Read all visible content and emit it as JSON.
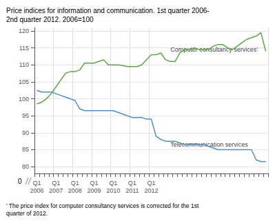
{
  "chart_data": {
    "type": "line",
    "title": "Price indices for information and communication. 1st quarter 2006-\n2nd quarter 2012. 2006=100",
    "footnote": "' The price index for computer consultancy services is corrected for the 1st quarter of 2012.",
    "categories": [
      "Q1\n2006",
      null,
      null,
      null,
      "Q1\n2007",
      null,
      null,
      null,
      "Q1\n2008",
      null,
      null,
      null,
      "Q1\n2009",
      null,
      null,
      null,
      "Q1\n2010",
      null,
      null,
      null,
      "Q1\n2011",
      null,
      null,
      null,
      "Q1\n2012",
      null,
      null,
      null,
      null,
      null,
      null,
      null,
      null,
      null,
      null,
      null,
      null,
      null,
      null,
      null,
      null,
      null,
      null,
      null,
      null,
      null,
      null,
      null,
      null
    ],
    "series": [
      {
        "color": "#5aaa3a",
        "values": [
          98.5,
          99.0,
          100.0,
          101.5,
          103.5,
          105.5,
          107.5,
          108.0,
          108.0,
          108.5,
          110.5,
          110.5,
          110.5,
          111.0,
          111.5,
          110.0,
          110.0,
          110.0,
          109.8,
          109.5,
          109.5,
          109.5,
          110.0,
          111.5,
          113.0,
          113.0,
          113.5,
          111.5,
          111.0,
          111.0,
          113.5,
          114.5,
          114.5,
          115.0,
          114.5,
          114.5,
          114.5,
          115.5,
          116.0,
          116.0,
          115.0,
          114.5,
          115.5,
          116.5,
          117.5,
          118.0,
          118.5,
          119.5,
          114.0
        ]
      },
      {
        "color": "#4d8fcc",
        "values": [
          102.5,
          102.0,
          102.0,
          102.0,
          101.5,
          101.0,
          100.5,
          100.0,
          99.5,
          97.0,
          96.5,
          96.5,
          96.5,
          96.5,
          96.5,
          96.5,
          96.5,
          96.0,
          95.5,
          95.0,
          94.5,
          94.5,
          94.5,
          94.0,
          94.0,
          89.0,
          88.0,
          87.5,
          87.5,
          87.5,
          87.0,
          86.5,
          86.5,
          86.5,
          86.5,
          86.5,
          86.0,
          85.5,
          85.0,
          85.0,
          85.0,
          85.0,
          85.0,
          85.0,
          85.0,
          85.0,
          82.0,
          81.5,
          81.5
        ]
      }
    ],
    "annotations": [
      {
        "text": "Computer consultancy services'",
        "x": 28,
        "y": 113.5
      },
      {
        "text": "Telecommunication services",
        "x": 28,
        "y": 87.5
      },
      {
        "text": "0"
      }
    ],
    "ylim": [
      78,
      121
    ],
    "yticks": [
      80,
      85,
      90,
      95,
      100,
      105,
      110,
      115,
      120
    ],
    "grid": true
  }
}
